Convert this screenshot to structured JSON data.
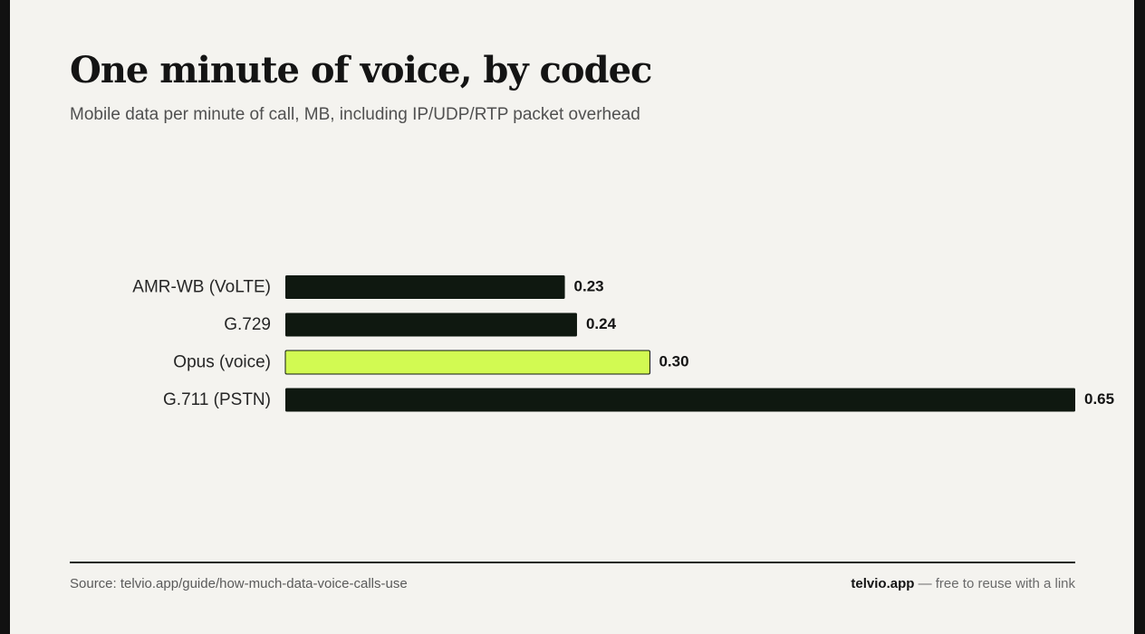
{
  "colors": {
    "background": "#f4f3ef",
    "bar_default": "#0f1810",
    "bar_highlight": "#d2fa52",
    "text_dark": "#141414"
  },
  "chart_data": {
    "type": "bar",
    "orientation": "horizontal",
    "title": "One minute of voice, by codec",
    "subtitle": "Mobile data per minute of call, MB, including IP/UDP/RTP packet overhead",
    "categories": [
      "AMR-WB (VoLTE)",
      "G.729",
      "Opus (voice)",
      "G.711 (PSTN)"
    ],
    "values": [
      0.23,
      0.24,
      0.3,
      0.65
    ],
    "value_labels": [
      "0.23",
      "0.24",
      "0.30",
      "0.65"
    ],
    "highlight": "Opus (voice)",
    "xlim": [
      0,
      0.65
    ],
    "grid": false
  },
  "footer": {
    "source": "Source: telvio.app/guide/how-much-data-voice-calls-use",
    "brand": "telvio.app",
    "note": " — free to reuse with a link"
  }
}
